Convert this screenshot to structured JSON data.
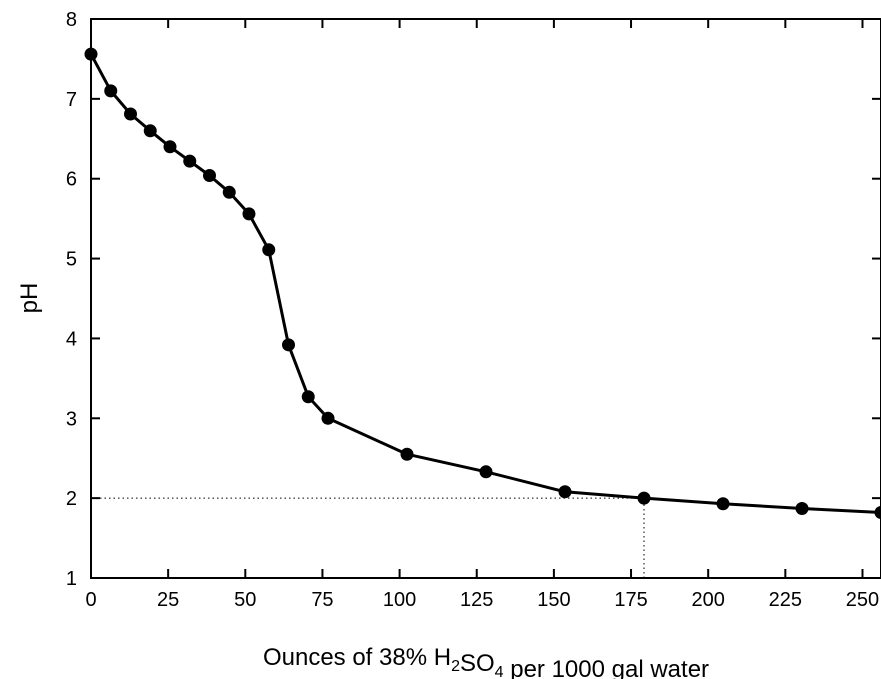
{
  "chart_data": {
    "type": "line",
    "title": "",
    "xlabel": {
      "parts": [
        {
          "text": "Ounces of 38% H",
          "sub": false
        },
        {
          "text": "2",
          "sub": true
        },
        {
          "text": "SO",
          "sub": false
        },
        {
          "text": "4",
          "sub": true
        },
        {
          "text": " per 1000 gal water",
          "sub": false
        }
      ]
    },
    "ylabel": "pH",
    "xlim": [
      0,
      256
    ],
    "ylim": [
      1,
      8
    ],
    "x_ticks": [
      0,
      25,
      50,
      75,
      100,
      125,
      150,
      175,
      200,
      225,
      250
    ],
    "x_tick_labels": [
      "0",
      "25",
      "50",
      "75",
      "100",
      "125",
      "150",
      "175",
      "200",
      "225",
      "250"
    ],
    "y_ticks": [
      1,
      2,
      3,
      4,
      5,
      6,
      7,
      8
    ],
    "y_tick_labels": [
      "1",
      "2",
      "3",
      "4",
      "5",
      "6",
      "7",
      "8"
    ],
    "grid": false,
    "series": [
      {
        "color": "#000000",
        "marker": "filled-circle",
        "x": [
          0,
          6.4,
          12.8,
          19.2,
          25.6,
          32,
          38.4,
          44.8,
          51.2,
          57.6,
          64,
          70.4,
          76.8,
          102.4,
          128,
          153.6,
          179.2,
          204.8,
          230.4,
          256
        ],
        "y": [
          7.56,
          7.1,
          6.81,
          6.6,
          6.4,
          6.22,
          6.04,
          5.83,
          5.56,
          5.11,
          3.92,
          3.27,
          3.0,
          2.55,
          2.33,
          2.08,
          2.0,
          1.93,
          1.87,
          1.82
        ]
      }
    ],
    "reference_lines": [
      {
        "style": "dotted",
        "orientation": "horizontal",
        "y": 2.0,
        "x_from": 0,
        "x_to": 179.2
      },
      {
        "style": "dotted",
        "orientation": "vertical",
        "x": 179.2,
        "y_from": 1,
        "y_to": 2.0
      }
    ]
  }
}
